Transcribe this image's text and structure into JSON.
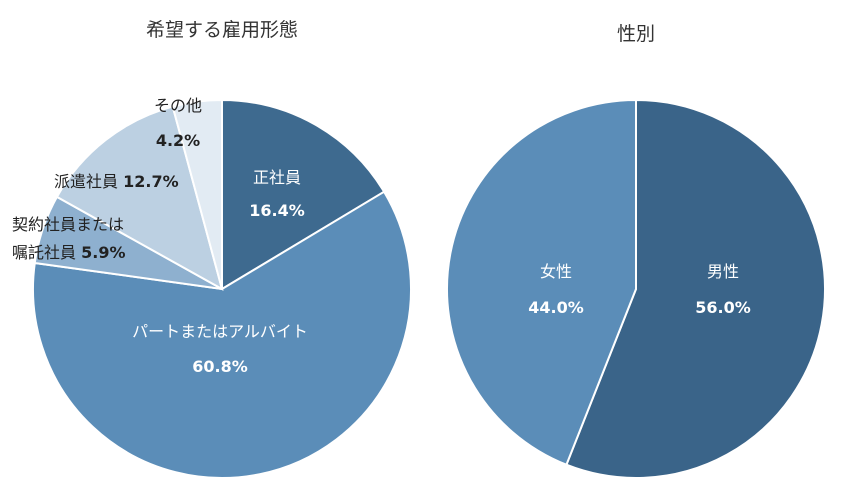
{
  "chart_data": [
    {
      "type": "pie",
      "title": "希望する雇用形態",
      "slices": [
        {
          "label": "正社員",
          "pct_label": "16.4%",
          "value": 16.4,
          "color": "#3e6a8f",
          "text_color": "#ffffff"
        },
        {
          "label": "パートまたはアルバイト",
          "pct_label": "60.8%",
          "value": 60.8,
          "color": "#5b8db8",
          "text_color": "#ffffff"
        },
        {
          "label": "契約社員または 嘱託社員",
          "pct_label": "5.9%",
          "value": 5.9,
          "color": "#8eb0cf",
          "text_color": "#222222"
        },
        {
          "label": "派遣社員",
          "pct_label": "12.7%",
          "value": 12.7,
          "color": "#bcd0e2",
          "text_color": "#222222"
        },
        {
          "label": "その他",
          "pct_label": "4.2%",
          "value": 4.2,
          "color": "#e2ebf3",
          "text_color": "#222222"
        }
      ]
    },
    {
      "type": "pie",
      "title": "性別",
      "slices": [
        {
          "label": "男性",
          "pct_label": "56.0%",
          "value": 56.0,
          "color": "#3a6489",
          "text_color": "#ffffff"
        },
        {
          "label": "女性",
          "pct_label": "44.0%",
          "value": 44.0,
          "color": "#5b8db8",
          "text_color": "#ffffff"
        }
      ]
    }
  ]
}
